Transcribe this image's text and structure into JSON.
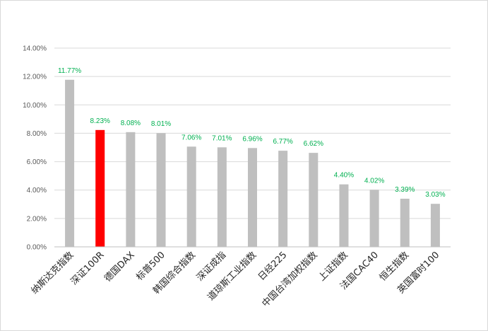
{
  "chart_data": {
    "type": "bar",
    "categories": [
      "纳斯达克指数",
      "深证100R",
      "德国DAX",
      "标普500",
      "韩国综合指数",
      "深证成指",
      "道琼斯工业指数",
      "日经225",
      "中国台湾加权指数",
      "上证指数",
      "法国CAC40",
      "恒生指数",
      "英国富时100"
    ],
    "values": [
      11.77,
      8.23,
      8.08,
      8.01,
      7.06,
      7.01,
      6.96,
      6.77,
      6.62,
      4.4,
      4.02,
      3.39,
      3.03
    ],
    "data_labels": [
      "11.77%",
      "8.23%",
      "8.08%",
      "8.01%",
      "7.06%",
      "7.01%",
      "6.96%",
      "6.77%",
      "6.62%",
      "4.40%",
      "4.02%",
      "3.39%",
      "3.03%"
    ],
    "highlight_index": 1,
    "yticks": [
      "0.00%",
      "2.00%",
      "4.00%",
      "6.00%",
      "8.00%",
      "10.00%",
      "12.00%",
      "14.00%"
    ],
    "ylim": [
      0,
      14
    ],
    "grid": true,
    "legend": "none",
    "title": "",
    "xlabel": "",
    "ylabel": "",
    "colors": {
      "bar": "#bfbfbf",
      "highlight": "#ff0000",
      "data_label": "#00b050",
      "grid": "#d9d9d9",
      "axis": "#bfbfbf"
    }
  }
}
